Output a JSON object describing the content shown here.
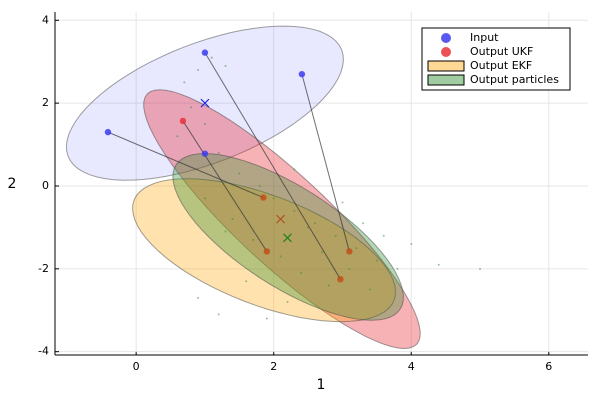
{
  "chart_data": {
    "type": "scatter",
    "x_label": "1",
    "y_label": "2",
    "xlim": [
      -1.18,
      6.57
    ],
    "ylim": [
      -4.08,
      4.2
    ],
    "xticks": [
      0,
      2,
      4,
      6
    ],
    "yticks": [
      -4,
      -2,
      0,
      2,
      4
    ],
    "grid": true,
    "legend": "top-right",
    "ellipses": [
      {
        "color": "#4040ff",
        "opacity": 0.12,
        "center": [
          1.0,
          2.0
        ],
        "a": [
          1.99,
          1.28
        ],
        "b": [
          -0.31,
          1.35
        ]
      },
      {
        "color": "#e8232e",
        "opacity": 0.35,
        "center": [
          2.12,
          -0.8
        ],
        "a": [
          1.96,
          -3.02
        ],
        "b": [
          0.45,
          0.8
        ]
      },
      {
        "name": "Output EKF",
        "color": "#ffa500",
        "opacity": 0.32,
        "center": [
          1.86,
          -1.55
        ],
        "a": [
          1.89,
          -1.21
        ],
        "b": [
          -0.29,
          -1.23
        ]
      },
      {
        "name": "Output particles",
        "color": "#2e8b2e",
        "opacity": 0.35,
        "center": [
          2.21,
          -1.23
        ],
        "a": [
          1.63,
          -1.74
        ],
        "b": [
          -0.39,
          -1.01
        ]
      }
    ],
    "links": [
      {
        "x": [
          1.0,
          2.97
        ],
        "y": [
          3.22,
          -2.25
        ]
      },
      {
        "x": [
          2.41,
          3.1
        ],
        "y": [
          2.7,
          -1.58
        ]
      },
      {
        "x": [
          -0.41,
          1.85
        ],
        "y": [
          1.3,
          -0.28
        ]
      },
      {
        "x": [
          0.68,
          1.9
        ],
        "y": [
          1.57,
          -1.58
        ]
      }
    ],
    "series": [
      {
        "color": "#2e8b2e",
        "marker": "dot",
        "x": [
          0.7,
          0.9,
          1.1,
          1.3,
          0.8,
          1.0,
          1.2,
          0.6,
          1.5,
          1.8,
          2.0,
          2.3,
          2.6,
          2.9,
          3.2,
          3.5,
          3.8,
          1.4,
          1.7,
          2.1,
          2.4,
          2.8,
          3.0,
          3.3,
          3.6,
          1.0,
          1.3,
          1.6,
          2.2,
          2.5,
          2.7,
          3.1,
          3.4,
          4.0,
          4.4,
          0.9,
          1.2,
          1.9,
          2.3,
          5.0
        ],
        "y": [
          2.5,
          2.8,
          3.1,
          2.9,
          1.9,
          1.5,
          0.8,
          1.2,
          0.3,
          0.0,
          -0.3,
          -0.6,
          -0.9,
          -1.2,
          -1.5,
          -1.8,
          -2.0,
          -0.8,
          -1.3,
          -1.7,
          -2.1,
          -2.4,
          -0.4,
          -0.9,
          -1.2,
          -0.3,
          -1.1,
          -2.3,
          -2.8,
          -1.0,
          -1.6,
          -2.0,
          -2.5,
          -1.4,
          -1.9,
          -2.7,
          -3.1,
          -3.2,
          0.4,
          -2.0
        ]
      },
      {
        "name": "Input",
        "color": "#3c3cf0",
        "marker": "circle",
        "x": [
          1.0,
          2.41,
          -0.41,
          1.0
        ],
        "y": [
          3.22,
          2.7,
          1.3,
          0.78
        ]
      },
      {
        "name": "Output UKF",
        "color": "#e8323a",
        "marker": "circle",
        "x": [
          0.68
        ],
        "y": [
          1.57
        ]
      },
      {
        "color": "#c0501a",
        "marker": "circle",
        "x": [
          1.85,
          1.9,
          3.1,
          2.97
        ],
        "y": [
          -0.28,
          -1.58,
          -1.58,
          -2.25
        ]
      },
      {
        "color": "#2020e0",
        "marker": "x",
        "x": [
          1.0
        ],
        "y": [
          2.0
        ]
      },
      {
        "color": "#b05020",
        "marker": "x",
        "x": [
          2.1
        ],
        "y": [
          -0.8
        ]
      },
      {
        "color": "#208020",
        "marker": "x",
        "x": [
          2.2
        ],
        "y": [
          -1.25
        ]
      }
    ]
  }
}
